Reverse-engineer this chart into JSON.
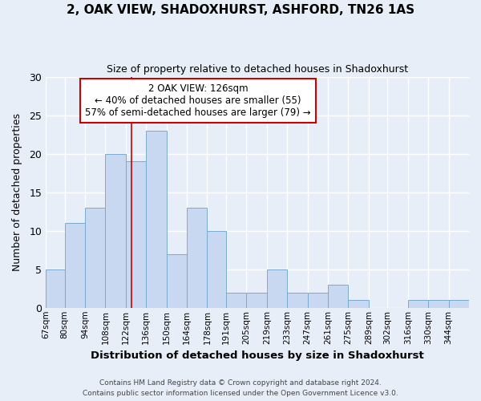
{
  "title": "2, OAK VIEW, SHADOXHURST, ASHFORD, TN26 1AS",
  "subtitle": "Size of property relative to detached houses in Shadoxhurst",
  "xlabel": "Distribution of detached houses by size in Shadoxhurst",
  "ylabel": "Number of detached properties",
  "bar_color": "#c8d8f0",
  "bar_edge_color": "#7aaad0",
  "categories": [
    "67sqm",
    "80sqm",
    "94sqm",
    "108sqm",
    "122sqm",
    "136sqm",
    "150sqm",
    "164sqm",
    "178sqm",
    "191sqm",
    "205sqm",
    "219sqm",
    "233sqm",
    "247sqm",
    "261sqm",
    "275sqm",
    "289sqm",
    "302sqm",
    "316sqm",
    "330sqm",
    "344sqm"
  ],
  "values": [
    5,
    11,
    13,
    20,
    19,
    23,
    7,
    13,
    10,
    2,
    2,
    5,
    2,
    2,
    3,
    1,
    0,
    0,
    1,
    1,
    1
  ],
  "annotation_line1": "2 OAK VIEW: 126sqm",
  "annotation_line2": "← 40% of detached houses are smaller (55)",
  "annotation_line3": "57% of semi-detached houses are larger (79) →",
  "annotation_box_color": "white",
  "annotation_box_edge_color": "#cc0000",
  "vline_x": 126,
  "vline_color": "#cc0000",
  "ylim": [
    0,
    30
  ],
  "yticks": [
    0,
    5,
    10,
    15,
    20,
    25,
    30
  ],
  "footer1": "Contains HM Land Registry data © Crown copyright and database right 2024.",
  "footer2": "Contains public sector information licensed under the Open Government Licence v3.0.",
  "background_color": "#e8eef8",
  "grid_color": "#ffffff",
  "bin_edges": [
    67,
    80,
    94,
    108,
    122,
    136,
    150,
    164,
    178,
    191,
    205,
    219,
    233,
    247,
    261,
    275,
    289,
    302,
    316,
    330,
    344,
    358
  ]
}
